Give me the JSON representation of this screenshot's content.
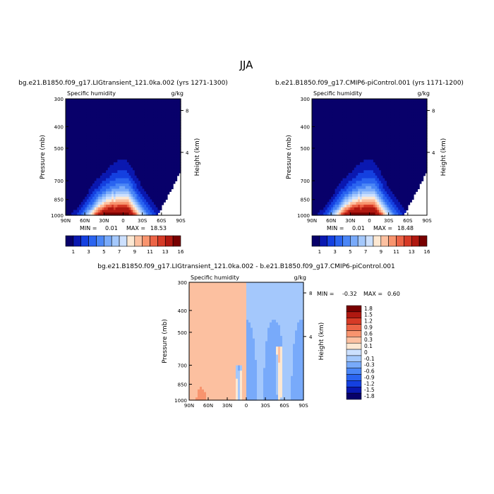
{
  "page_title": "JJA",
  "colors": {
    "scale": [
      "#08006a",
      "#0a18b0",
      "#1440e0",
      "#2a64f0",
      "#4a86f6",
      "#78aafa",
      "#a4c8fc",
      "#cce0fe",
      "#fde8d2",
      "#fcc0a0",
      "#f8946e",
      "#ec6446",
      "#d63a26",
      "#b01810",
      "#780000"
    ],
    "diff_scale": [
      "#08006a",
      "#0a18b0",
      "#1440e0",
      "#2a64f0",
      "#4a86f6",
      "#78aafa",
      "#a4c8fc",
      "#cce0fe",
      "#fde8d2",
      "#fcc0a0",
      "#f8946e",
      "#ec6446",
      "#d63a26",
      "#b01810",
      "#780000"
    ]
  },
  "chart_data": [
    {
      "id": "left",
      "type": "heatmap",
      "title": "bg.e21.B1850.f09_g17.LIGtransient_121.0ka.002 (yrs 1271-1300)",
      "field_label": "Specific humidity",
      "units": "g/kg",
      "xlabel": "",
      "ylabel": "Pressure (mb)",
      "y2label": "Height (km)",
      "x_ticks": [
        "90N",
        "60N",
        "30N",
        "0",
        "30S",
        "60S",
        "90S"
      ],
      "y_ticks": [
        "300",
        "400",
        "500",
        "700",
        "850",
        "1000"
      ],
      "y2_ticks": [
        "8",
        "4"
      ],
      "stats": {
        "min_label": "MIN =",
        "min": "0.01",
        "max_label": "MAX =",
        "max": "18.53"
      },
      "colorbar_labels": [
        "1",
        "3",
        "5",
        "7",
        "9",
        "11",
        "13",
        "16"
      ],
      "peak_lat": 2
    },
    {
      "id": "right",
      "type": "heatmap",
      "title": "b.e21.B1850.f09_g17.CMIP6-piControl.001 (yrs 1171-1200)",
      "field_label": "Specific humidity",
      "units": "g/kg",
      "xlabel": "",
      "ylabel": "Pressure (mb)",
      "y2label": "Height (km)",
      "x_ticks": [
        "90N",
        "60N",
        "30N",
        "0",
        "30S",
        "60S",
        "90S"
      ],
      "y_ticks": [
        "300",
        "400",
        "500",
        "700",
        "850",
        "1000"
      ],
      "y2_ticks": [
        "8",
        "4"
      ],
      "stats": {
        "min_label": "MIN =",
        "min": "0.01",
        "max_label": "MAX =",
        "max": "18.48"
      },
      "colorbar_labels": [
        "1",
        "3",
        "5",
        "7",
        "9",
        "11",
        "13",
        "16"
      ],
      "peak_lat": 2
    },
    {
      "id": "diff",
      "type": "heatmap",
      "title": "bg.e21.B1850.f09_g17.LIGtransient_121.0ka.002 - b.e21.B1850.f09_g17.CMIP6-piControl.001",
      "field_label": "Specific humidity",
      "units": "g/kg",
      "ylabel": "Pressure (mb)",
      "y2label": "Height (km)",
      "x_ticks": [
        "90N",
        "60N",
        "30N",
        "0",
        "30S",
        "60S",
        "90S"
      ],
      "y_ticks": [
        "300",
        "400",
        "500",
        "700",
        "850",
        "1000"
      ],
      "y2_ticks": [
        "8",
        "4"
      ],
      "stats": {
        "min_label": "MIN =",
        "min": "-0.32",
        "max_label": "MAX =",
        "max": "0.60"
      },
      "colorbar_labels": [
        "1.8",
        "1.5",
        "1.2",
        "0.9",
        "0.6",
        "0.3",
        "0.1",
        "0",
        "-0.1",
        "-0.3",
        "-0.6",
        "-0.9",
        "-1.2",
        "-1.5",
        "-1.8"
      ]
    }
  ]
}
